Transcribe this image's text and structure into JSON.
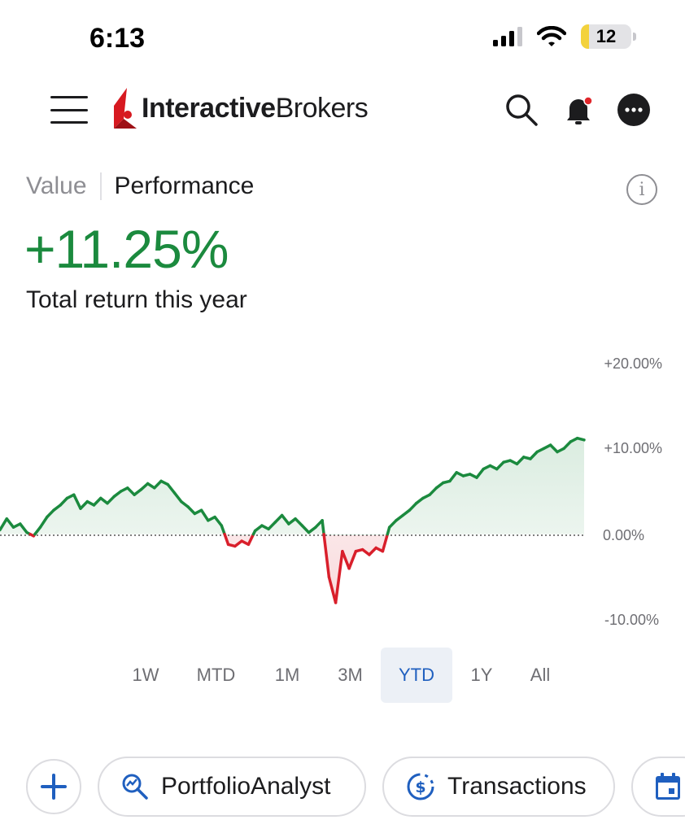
{
  "status_bar": {
    "time": "6:13",
    "battery": "12"
  },
  "header": {
    "logo_bold": "Interactive",
    "logo_light": "Brokers"
  },
  "tabs": {
    "value": "Value",
    "performance": "Performance",
    "info": "i"
  },
  "summary": {
    "return_value": "+11.25%",
    "caption": "Total return this year"
  },
  "chart_data": {
    "type": "area",
    "y_ticks": [
      "+20.00%",
      "+10.00%",
      "0.00%",
      "-10.00%"
    ],
    "ylim": [
      -10,
      20
    ],
    "baseline": 0,
    "positive_color": "#1b8a3e",
    "negative_color": "#d91f2b",
    "values": [
      0.5,
      1.8,
      0.8,
      1.2,
      0.2,
      -0.2,
      0.8,
      2.0,
      2.8,
      3.4,
      4.2,
      4.6,
      3.0,
      3.8,
      3.4,
      4.2,
      3.6,
      4.4,
      5.0,
      5.4,
      4.6,
      5.2,
      5.9,
      5.4,
      6.2,
      5.8,
      4.8,
      3.8,
      3.2,
      2.4,
      2.8,
      1.6,
      2.0,
      1.0,
      -1.2,
      -1.4,
      -0.8,
      -1.2,
      0.4,
      1.0,
      0.6,
      1.4,
      2.2,
      1.2,
      1.8,
      1.0,
      0.2,
      0.8,
      1.6,
      -5.0,
      -8.0,
      -2.0,
      -4.0,
      -2.0,
      -1.8,
      -2.4,
      -1.6,
      -2.0,
      0.8,
      1.6,
      2.2,
      2.8,
      3.6,
      4.2,
      4.6,
      5.4,
      6.0,
      6.2,
      7.2,
      6.8,
      7.0,
      6.6,
      7.6,
      8.0,
      7.6,
      8.4,
      8.6,
      8.2,
      9.0,
      8.8,
      9.6,
      10.0,
      10.4,
      9.6,
      10.0,
      10.8,
      11.2,
      11.0
    ]
  },
  "periods": [
    "1W",
    "MTD",
    "1M",
    "3M",
    "YTD",
    "1Y",
    "All"
  ],
  "selected_period": "YTD",
  "quick_actions": {
    "portfolio_analyst": "PortfolioAnalyst",
    "transactions": "Transactions"
  },
  "colors": {
    "accent": "#1f5fbf",
    "positive": "#1b8a3e",
    "negative": "#d91f2b",
    "logo_red": "#d71920"
  },
  "icons": [
    "menu-icon",
    "search-icon",
    "bell-icon",
    "more-icon",
    "info-icon",
    "plus-icon",
    "portfolio-analyst-icon",
    "transactions-icon",
    "calendar-icon"
  ]
}
